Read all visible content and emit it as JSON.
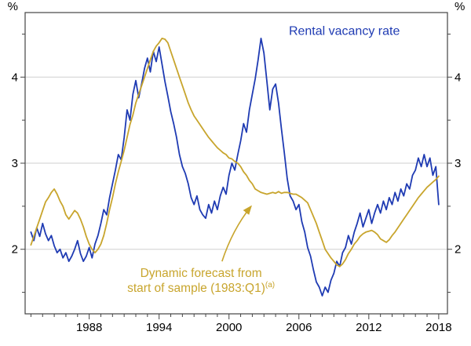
{
  "chart_data": {
    "type": "line",
    "title": "",
    "unit": "%",
    "xlim": [
      1982.5,
      2018.75
    ],
    "ylim": [
      1.25,
      4.75
    ],
    "yticks": [
      2,
      3,
      4
    ],
    "yticks_minor": [
      1.5,
      2.5,
      3.5,
      4.5
    ],
    "xticks_labeled": [
      1988,
      1994,
      2000,
      2006,
      2012,
      2018
    ],
    "grid": true,
    "legend_position": "in-plot-annotations",
    "style": {
      "frame_color": "#444444",
      "grid_color": "#cfcfcf",
      "blue": "#1f3bb3",
      "gold": "#c8a52d"
    },
    "series": [
      {
        "id": "rental-vacancy-rate",
        "name": "Rental vacancy rate",
        "color": "#1f3bb3",
        "x_start": 1983.0,
        "x_step": 0.25,
        "values": [
          2.2,
          2.1,
          2.25,
          2.15,
          2.3,
          2.18,
          2.1,
          2.16,
          2.04,
          1.96,
          2.0,
          1.9,
          1.96,
          1.86,
          1.92,
          2.0,
          2.1,
          1.95,
          1.86,
          1.92,
          2.02,
          1.9,
          2.06,
          2.16,
          2.3,
          2.46,
          2.4,
          2.6,
          2.76,
          2.92,
          3.1,
          3.04,
          3.3,
          3.62,
          3.5,
          3.8,
          3.96,
          3.76,
          3.92,
          4.1,
          4.22,
          4.06,
          4.3,
          4.18,
          4.35,
          4.15,
          3.95,
          3.78,
          3.6,
          3.46,
          3.3,
          3.1,
          2.96,
          2.88,
          2.76,
          2.6,
          2.52,
          2.62,
          2.46,
          2.4,
          2.36,
          2.52,
          2.42,
          2.56,
          2.46,
          2.62,
          2.72,
          2.64,
          2.86,
          3.0,
          2.92,
          3.1,
          3.26,
          3.46,
          3.36,
          3.62,
          3.8,
          3.98,
          4.2,
          4.45,
          4.28,
          3.95,
          3.62,
          3.86,
          3.92,
          3.7,
          3.4,
          3.12,
          2.82,
          2.62,
          2.56,
          2.46,
          2.52,
          2.32,
          2.2,
          2.02,
          1.92,
          1.76,
          1.62,
          1.56,
          1.46,
          1.56,
          1.5,
          1.64,
          1.72,
          1.86,
          1.8,
          1.96,
          2.02,
          2.16,
          2.06,
          2.2,
          2.3,
          2.42,
          2.26,
          2.36,
          2.46,
          2.3,
          2.42,
          2.52,
          2.42,
          2.56,
          2.46,
          2.6,
          2.52,
          2.66,
          2.56,
          2.7,
          2.62,
          2.76,
          2.7,
          2.86,
          2.92,
          3.06,
          2.96,
          3.1,
          2.96,
          3.06,
          2.86,
          2.96,
          2.52
        ]
      },
      {
        "id": "dynamic-forecast",
        "name": "Dynamic forecast from start of sample (1983:Q1)",
        "color": "#c8a52d",
        "x_start": 1983.0,
        "x_step": 0.25,
        "values": [
          2.05,
          2.15,
          2.25,
          2.35,
          2.45,
          2.55,
          2.6,
          2.66,
          2.7,
          2.64,
          2.56,
          2.5,
          2.4,
          2.35,
          2.4,
          2.45,
          2.42,
          2.35,
          2.26,
          2.15,
          2.06,
          2.0,
          1.96,
          2.0,
          2.06,
          2.16,
          2.3,
          2.46,
          2.6,
          2.76,
          2.9,
          3.02,
          3.15,
          3.3,
          3.45,
          3.56,
          3.7,
          3.8,
          3.9,
          4.0,
          4.1,
          4.2,
          4.3,
          4.36,
          4.4,
          4.45,
          4.44,
          4.4,
          4.3,
          4.2,
          4.1,
          4.0,
          3.9,
          3.8,
          3.7,
          3.62,
          3.55,
          3.5,
          3.45,
          3.4,
          3.35,
          3.3,
          3.26,
          3.22,
          3.18,
          3.15,
          3.12,
          3.1,
          3.06,
          3.05,
          3.02,
          3.0,
          2.96,
          2.9,
          2.86,
          2.8,
          2.76,
          2.7,
          2.68,
          2.66,
          2.65,
          2.64,
          2.65,
          2.66,
          2.65,
          2.67,
          2.65,
          2.66,
          2.66,
          2.65,
          2.64,
          2.64,
          2.62,
          2.6,
          2.57,
          2.54,
          2.46,
          2.38,
          2.3,
          2.2,
          2.1,
          2.0,
          1.95,
          1.9,
          1.86,
          1.82,
          1.8,
          1.83,
          1.88,
          1.95,
          2.0,
          2.06,
          2.1,
          2.15,
          2.18,
          2.2,
          2.21,
          2.22,
          2.2,
          2.17,
          2.12,
          2.1,
          2.08,
          2.11,
          2.16,
          2.2,
          2.25,
          2.3,
          2.35,
          2.4,
          2.45,
          2.5,
          2.55,
          2.6,
          2.64,
          2.68,
          2.72,
          2.75,
          2.78,
          2.81,
          2.85
        ]
      }
    ],
    "annotations": [
      {
        "kind": "text",
        "id": "rental-vacancy-label",
        "text": "Rental vacancy rate",
        "color": "#1f3bb3",
        "at": [
          2009.9,
          4.49
        ]
      },
      {
        "kind": "text",
        "id": "forecast-label",
        "lines": [
          "Dynamic forecast from",
          "start of sample (1983:Q1)"
        ],
        "superscript": "(a)",
        "color": "#c8a52d",
        "at": [
          1997.6,
          1.68
        ]
      },
      {
        "kind": "arrow",
        "id": "forecast-arrow",
        "color": "#c8a52d",
        "from": [
          1999.4,
          1.86
        ],
        "ctrl": [
          2000.3,
          2.23
        ],
        "to": [
          2001.9,
          2.5
        ]
      }
    ]
  }
}
